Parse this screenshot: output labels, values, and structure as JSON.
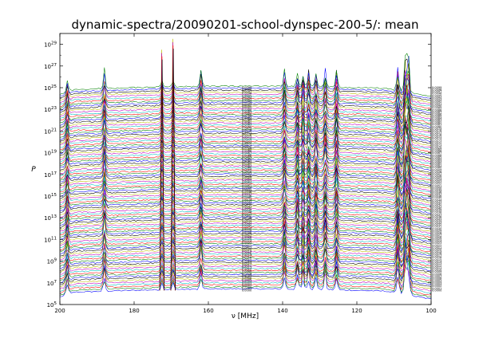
{
  "chart_data": {
    "type": "line",
    "title": "dynamic-spectra/20090201-school-dynspec-200-5/: mean",
    "xlabel": "ν [MHz]",
    "ylabel": "P",
    "xlim": [
      200,
      100
    ],
    "x_inverted": true,
    "ylim_log10": [
      5,
      30
    ],
    "yscale": "log",
    "grid": false,
    "legend": "none",
    "x_ticks": [
      200,
      180,
      160,
      140,
      120,
      100
    ],
    "y_ticks": [
      {
        "exp": 5,
        "label": "10^5"
      },
      {
        "exp": 7,
        "label": "10^7"
      },
      {
        "exp": 9,
        "label": "10^9"
      },
      {
        "exp": 11,
        "label": "10^11"
      },
      {
        "exp": 13,
        "label": "10^13"
      },
      {
        "exp": 15,
        "label": "10^15"
      },
      {
        "exp": 17,
        "label": "10^17"
      },
      {
        "exp": 19,
        "label": "10^19"
      },
      {
        "exp": 21,
        "label": "10^21"
      },
      {
        "exp": 23,
        "label": "10^23"
      },
      {
        "exp": 25,
        "label": "10^25"
      },
      {
        "exp": 27,
        "label": "10^27"
      },
      {
        "exp": 29,
        "label": "10^29"
      }
    ],
    "series_colors": [
      "#0000ff",
      "#008000",
      "#ff0000",
      "#00bfbf",
      "#bf00bf",
      "#bfbf00",
      "#000000"
    ],
    "series_count": 100,
    "series_log10_baseline_range": [
      6.3,
      25.0
    ],
    "spike_frequencies_mhz": [
      198,
      188,
      172.5,
      169.5,
      162,
      139.5,
      136,
      134.5,
      133,
      131,
      128.5,
      125.5,
      109,
      107,
      106.5,
      106
    ],
    "spike_peak_log10": {
      "172.5": 28.5,
      "169.5": 29.5
    },
    "trace_labels": [
      "0:0000",
      "0:0001",
      "0:0002",
      "0:0003",
      "0:0004",
      "0:0005",
      "0:0006",
      "0:0007",
      "0:0008",
      "0:0009",
      "0:0010",
      "0:0011",
      "0:0012",
      "0:0013",
      "0:0014",
      "0:0015",
      "0:0016",
      "0:0017",
      "0:0018",
      "0:0019",
      "0:0020",
      "0:0021",
      "0:0022",
      "0:0023",
      "0:0024",
      "0:0025",
      "0:0026",
      "0:0027",
      "0:0028",
      "0:0029",
      "0:0030",
      "0:0031",
      "0:0032",
      "0:0033",
      "0:0034",
      "0:0035",
      "0:0036",
      "0:0037",
      "0:0038",
      "0:0039",
      "0:0040",
      "0:0041",
      "0:0042",
      "0:0043",
      "0:0044",
      "0:0045",
      "0:0046",
      "0:0047",
      "0:0048",
      "0:0049",
      "0:0050",
      "0:0051",
      "0:0052",
      "0:0053",
      "0:0054",
      "0:0055",
      "0:0056",
      "0:0057",
      "0:0058",
      "0:0059",
      "0:0060",
      "0:0061",
      "0:0062",
      "0:0063",
      "0:0064",
      "0:0065",
      "0:0066",
      "0:0067",
      "0:0068",
      "0:0069",
      "0:0070",
      "0:0071",
      "0:0072",
      "0:0073",
      "0:0074",
      "0:0075",
      "0:0076",
      "0:0077",
      "0:0078",
      "0:0079",
      "0:0080",
      "0:0081",
      "0:0082",
      "0:0083",
      "0:0084",
      "0:0085",
      "0:0086",
      "0:0087",
      "0:0088",
      "0:0089",
      "0:0090",
      "0:0091",
      "0:0092",
      "0:0093",
      "0:0094",
      "0:0095",
      "0:0096",
      "0:0097",
      "0:0098",
      "0:0099"
    ]
  }
}
